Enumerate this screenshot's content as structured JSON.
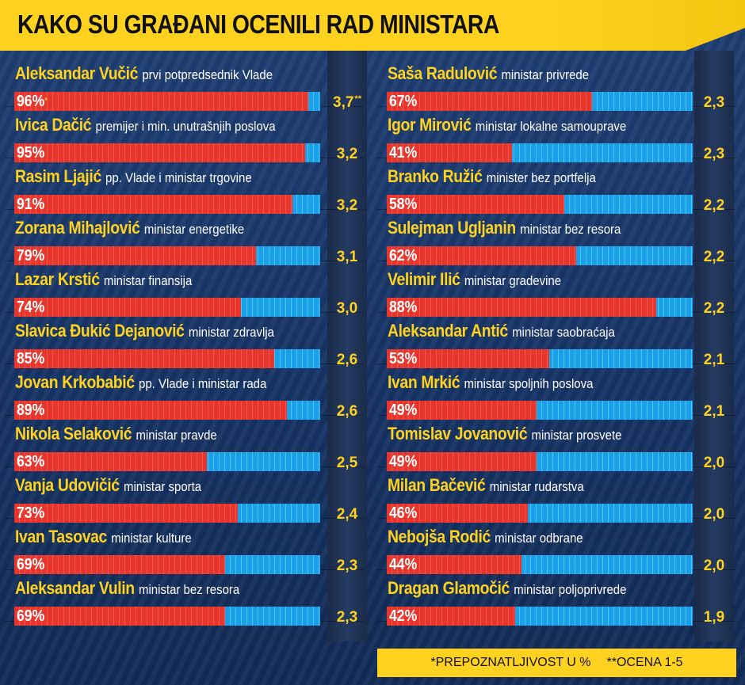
{
  "title": "KAKO SU GRAĐANI OCENILI RAD MINISTARA",
  "colors": {
    "recognition": "#e8362d",
    "remainder": "#1aa0e8",
    "accent": "#ffd21f",
    "background": "#1a3560"
  },
  "footnote": {
    "recognition": "*PREPOZNATLJIVOST U %",
    "grade": "**OCENA 1-5"
  },
  "chart_data": {
    "type": "bar",
    "columns": [
      [
        {
          "name": "Aleksandar Vučić",
          "role": "prvi potpredsednik Vlade",
          "recognition": 96,
          "recognition_label": "96%",
          "grade": 3.7,
          "grade_label": "3,7"
        },
        {
          "name": "Ivica Dačić",
          "role": "premijer i min. unutrašnjih poslova",
          "recognition": 95,
          "recognition_label": "95%",
          "grade": 3.2,
          "grade_label": "3,2"
        },
        {
          "name": "Rasim Ljajić",
          "role": "pp.  Vlade i ministar trgovine",
          "recognition": 91,
          "recognition_label": "91%",
          "grade": 3.2,
          "grade_label": "3,2"
        },
        {
          "name": "Zorana Mihajlović",
          "role": "ministar energetike",
          "recognition": 79,
          "recognition_label": "79%",
          "grade": 3.1,
          "grade_label": "3,1"
        },
        {
          "name": "Lazar Krstić",
          "role": "ministar finansija",
          "recognition": 74,
          "recognition_label": "74%",
          "grade": 3.0,
          "grade_label": "3,0"
        },
        {
          "name": "Slavica Đukić Dejanović",
          "role": "ministar zdravlja",
          "recognition": 85,
          "recognition_label": "85%",
          "grade": 2.6,
          "grade_label": "2,6"
        },
        {
          "name": "Jovan Krkobabić",
          "role": "pp. Vlade i ministar rada",
          "recognition": 89,
          "recognition_label": "89%",
          "grade": 2.6,
          "grade_label": "2,6"
        },
        {
          "name": "Nikola Selaković",
          "role": "ministar pravde",
          "recognition": 63,
          "recognition_label": "63%",
          "grade": 2.5,
          "grade_label": "2,5"
        },
        {
          "name": "Vanja Udovičić",
          "role": "ministar sporta",
          "recognition": 73,
          "recognition_label": "73%",
          "grade": 2.4,
          "grade_label": "2,4"
        },
        {
          "name": "Ivan Tasovac",
          "role": "ministar kulture",
          "recognition": 69,
          "recognition_label": "69%",
          "grade": 2.3,
          "grade_label": "2,3"
        },
        {
          "name": "Aleksandar Vulin",
          "role": "ministar bez resora",
          "recognition": 69,
          "recognition_label": "69%",
          "grade": 2.3,
          "grade_label": "2,3"
        }
      ],
      [
        {
          "name": "Saša Radulović",
          "role": "ministar privrede",
          "recognition": 67,
          "recognition_label": "67%",
          "grade": 2.3,
          "grade_label": "2,3"
        },
        {
          "name": "Igor Mirović",
          "role": "ministar lokalne samouprave",
          "recognition": 41,
          "recognition_label": "41%",
          "grade": 2.3,
          "grade_label": "2,3"
        },
        {
          "name": "Branko Ružić",
          "role": "minister bez portfelja",
          "recognition": 58,
          "recognition_label": "58%",
          "grade": 2.2,
          "grade_label": "2,2"
        },
        {
          "name": "Sulejman Ugljanin",
          "role": "ministar bez resora",
          "recognition": 62,
          "recognition_label": "62%",
          "grade": 2.2,
          "grade_label": "2,2"
        },
        {
          "name": "Velimir Ilić",
          "role": "ministar gradevine",
          "recognition": 88,
          "recognition_label": "88%",
          "grade": 2.2,
          "grade_label": "2,2"
        },
        {
          "name": "Aleksandar Antić",
          "role": "ministar saobraćaja",
          "recognition": 53,
          "recognition_label": "53%",
          "grade": 2.1,
          "grade_label": "2,1"
        },
        {
          "name": "Ivan Mrkić",
          "role": "ministar spoljnih poslova",
          "recognition": 49,
          "recognition_label": "49%",
          "grade": 2.1,
          "grade_label": "2,1"
        },
        {
          "name": "Tomislav Jovanović",
          "role": "ministar prosvete",
          "recognition": 49,
          "recognition_label": "49%",
          "grade": 2.0,
          "grade_label": "2,0"
        },
        {
          "name": "Milan Bačević",
          "role": "ministar rudarstva",
          "recognition": 46,
          "recognition_label": "46%",
          "grade": 2.0,
          "grade_label": "2,0"
        },
        {
          "name": "Nebojša Rodić",
          "role": "ministar odbrane",
          "recognition": 44,
          "recognition_label": "44%",
          "grade": 2.0,
          "grade_label": "2,0"
        },
        {
          "name": "Dragan Glamočić",
          "role": "ministar poljoprivrede",
          "recognition": 42,
          "recognition_label": "42%",
          "grade": 1.9,
          "grade_label": "1,9"
        }
      ]
    ],
    "xlim": [
      0,
      100
    ],
    "grade_range": [
      1,
      5
    ]
  }
}
